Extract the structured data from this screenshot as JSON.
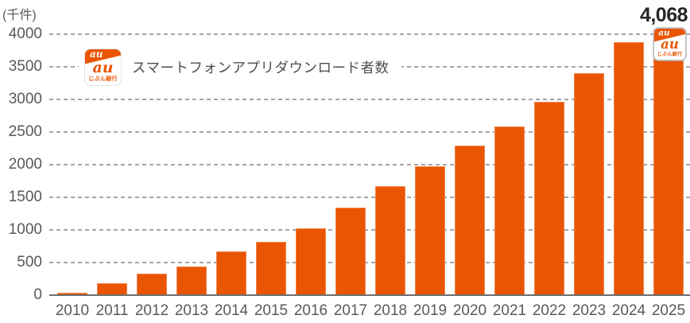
{
  "chart_data": {
    "type": "bar",
    "title": "スマートフォンアプリダウンロード者数",
    "unit_label": "(千件)",
    "categories": [
      "2010",
      "2011",
      "2012",
      "2013",
      "2014",
      "2015",
      "2016",
      "2017",
      "2018",
      "2019",
      "2020",
      "2021",
      "2022",
      "2023",
      "2024",
      "2025"
    ],
    "values": [
      40,
      185,
      325,
      440,
      665,
      820,
      1025,
      1340,
      1665,
      1975,
      2290,
      2585,
      2960,
      3400,
      3875,
      4068
    ],
    "yticks": [
      0,
      500,
      1000,
      1500,
      2000,
      2500,
      3000,
      3500,
      4000
    ],
    "ylim": [
      0,
      4000
    ],
    "latest_value_label": "4,068",
    "grid": "dashed-horizontal",
    "legend_position": "none",
    "bar_color": "#EA5504"
  },
  "logo": {
    "band_text": "au",
    "main_text": "au",
    "bank_text": "じぶん銀行",
    "color": "#EA5504"
  },
  "colors": {
    "bar": "#EA5504",
    "grid": "#A6A6A6",
    "axis_line": "#6F6F6F",
    "tick_label": "#595959",
    "title": "#4D4D4D",
    "annotation": "#262626",
    "background": "#FFFFFF"
  }
}
